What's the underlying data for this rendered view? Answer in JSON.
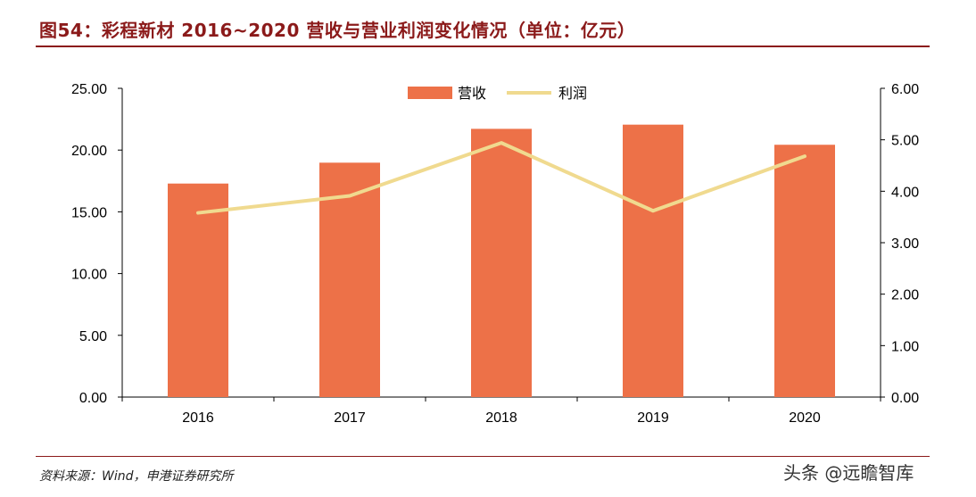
{
  "title": "图54：彩程新材 2016~2020 营收与营业利润变化情况（单位：亿元）",
  "source": "资料来源：Wind，申港证券研究所",
  "watermark": "头条 @远瞻智库",
  "chart_data": {
    "type": "bar+line",
    "categories": [
      "2016",
      "2017",
      "2018",
      "2019",
      "2020"
    ],
    "series": [
      {
        "name": "营收",
        "type": "bar",
        "axis": "left",
        "color": "#ED7148",
        "values": [
          17.29,
          18.98,
          21.72,
          22.06,
          20.43
        ]
      },
      {
        "name": "利润",
        "type": "line",
        "axis": "right",
        "color": "#F0DA8F",
        "values": [
          3.58,
          3.91,
          4.94,
          3.62,
          4.68
        ]
      }
    ],
    "y_left": {
      "ylim": [
        0,
        25
      ],
      "ticks": [
        "0.00",
        "5.00",
        "10.00",
        "15.00",
        "20.00",
        "25.00"
      ]
    },
    "y_right": {
      "ylim": [
        0,
        6
      ],
      "ticks": [
        "0.00",
        "1.00",
        "2.00",
        "3.00",
        "4.00",
        "5.00",
        "6.00"
      ]
    },
    "legend": "top-center",
    "grid": false
  }
}
